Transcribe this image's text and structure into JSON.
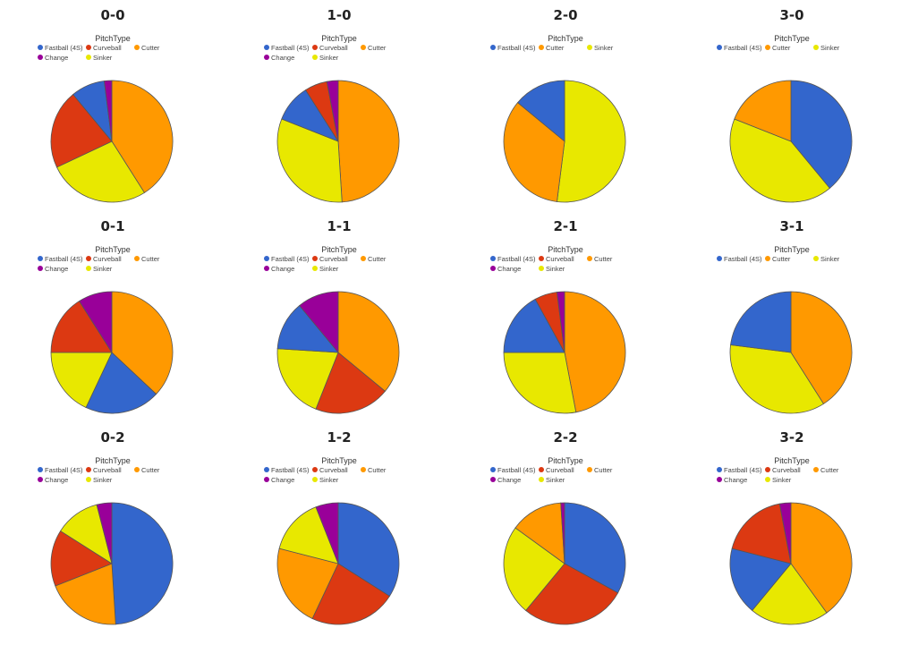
{
  "legend_title": "PitchType",
  "colors": {
    "Fastball (4S)": "#3366CC",
    "Curveball": "#DC3912",
    "Cutter": "#FF9900",
    "Change": "#990099",
    "Sinker": "#E8E800"
  },
  "chart_data": [
    {
      "type": "pie",
      "title": "0-0",
      "start": "Cutter",
      "slices": [
        {
          "label": "Cutter",
          "value": 41
        },
        {
          "label": "Sinker",
          "value": 27
        },
        {
          "label": "Curveball",
          "value": 21
        },
        {
          "label": "Fastball (4S)",
          "value": 9
        },
        {
          "label": "Change",
          "value": 2
        }
      ]
    },
    {
      "type": "pie",
      "title": "1-0",
      "start": "Cutter",
      "slices": [
        {
          "label": "Cutter",
          "value": 49
        },
        {
          "label": "Sinker",
          "value": 32
        },
        {
          "label": "Fastball (4S)",
          "value": 10
        },
        {
          "label": "Curveball",
          "value": 6
        },
        {
          "label": "Change",
          "value": 3
        }
      ]
    },
    {
      "type": "pie",
      "title": "2-0",
      "start": "Sinker",
      "slices": [
        {
          "label": "Sinker",
          "value": 52
        },
        {
          "label": "Cutter",
          "value": 34
        },
        {
          "label": "Fastball (4S)",
          "value": 14
        }
      ]
    },
    {
      "type": "pie",
      "title": "3-0",
      "start": "Fastball (4S)",
      "slices": [
        {
          "label": "Fastball (4S)",
          "value": 39
        },
        {
          "label": "Sinker",
          "value": 42
        },
        {
          "label": "Cutter",
          "value": 19
        }
      ]
    },
    {
      "type": "pie",
      "title": "0-1",
      "start": "Cutter",
      "slices": [
        {
          "label": "Cutter",
          "value": 37
        },
        {
          "label": "Fastball (4S)",
          "value": 20
        },
        {
          "label": "Sinker",
          "value": 18
        },
        {
          "label": "Curveball",
          "value": 16
        },
        {
          "label": "Change",
          "value": 9
        }
      ]
    },
    {
      "type": "pie",
      "title": "1-1",
      "start": "Cutter",
      "slices": [
        {
          "label": "Cutter",
          "value": 36
        },
        {
          "label": "Curveball",
          "value": 20
        },
        {
          "label": "Sinker",
          "value": 20
        },
        {
          "label": "Fastball (4S)",
          "value": 13
        },
        {
          "label": "Change",
          "value": 11
        }
      ]
    },
    {
      "type": "pie",
      "title": "2-1",
      "start": "Cutter",
      "slices": [
        {
          "label": "Cutter",
          "value": 47
        },
        {
          "label": "Sinker",
          "value": 28
        },
        {
          "label": "Fastball (4S)",
          "value": 17
        },
        {
          "label": "Curveball",
          "value": 6
        },
        {
          "label": "Change",
          "value": 2
        }
      ]
    },
    {
      "type": "pie",
      "title": "3-1",
      "start": "Cutter",
      "slices": [
        {
          "label": "Cutter",
          "value": 41
        },
        {
          "label": "Sinker",
          "value": 36
        },
        {
          "label": "Fastball (4S)",
          "value": 23
        }
      ]
    },
    {
      "type": "pie",
      "title": "0-2",
      "start": "Fastball (4S)",
      "slices": [
        {
          "label": "Fastball (4S)",
          "value": 49
        },
        {
          "label": "Cutter",
          "value": 20
        },
        {
          "label": "Curveball",
          "value": 15
        },
        {
          "label": "Sinker",
          "value": 12
        },
        {
          "label": "Change",
          "value": 4
        }
      ]
    },
    {
      "type": "pie",
      "title": "1-2",
      "start": "Fastball (4S)",
      "slices": [
        {
          "label": "Fastball (4S)",
          "value": 34
        },
        {
          "label": "Curveball",
          "value": 23
        },
        {
          "label": "Cutter",
          "value": 22
        },
        {
          "label": "Sinker",
          "value": 15
        },
        {
          "label": "Change",
          "value": 6
        }
      ]
    },
    {
      "type": "pie",
      "title": "2-2",
      "start": "Fastball (4S)",
      "slices": [
        {
          "label": "Fastball (4S)",
          "value": 33
        },
        {
          "label": "Curveball",
          "value": 28
        },
        {
          "label": "Sinker",
          "value": 24
        },
        {
          "label": "Cutter",
          "value": 14
        },
        {
          "label": "Change",
          "value": 1
        }
      ]
    },
    {
      "type": "pie",
      "title": "3-2",
      "start": "Cutter",
      "slices": [
        {
          "label": "Cutter",
          "value": 40
        },
        {
          "label": "Sinker",
          "value": 21
        },
        {
          "label": "Fastball (4S)",
          "value": 18
        },
        {
          "label": "Curveball",
          "value": 18
        },
        {
          "label": "Change",
          "value": 3
        }
      ]
    }
  ],
  "legends": [
    [
      "Fastball (4S)",
      "Curveball",
      "Cutter",
      "Change",
      "Sinker"
    ],
    [
      "Fastball (4S)",
      "Curveball",
      "Cutter",
      "Change",
      "Sinker"
    ],
    [
      "Fastball (4S)",
      "Cutter",
      "Sinker"
    ],
    [
      "Fastball (4S)",
      "Cutter",
      "Sinker"
    ],
    [
      "Fastball (4S)",
      "Curveball",
      "Cutter",
      "Change",
      "Sinker"
    ],
    [
      "Fastball (4S)",
      "Curveball",
      "Cutter",
      "Change",
      "Sinker"
    ],
    [
      "Fastball (4S)",
      "Curveball",
      "Cutter",
      "Change",
      "Sinker"
    ],
    [
      "Fastball (4S)",
      "Cutter",
      "Sinker"
    ],
    [
      "Fastball (4S)",
      "Curveball",
      "Cutter",
      "Change",
      "Sinker"
    ],
    [
      "Fastball (4S)",
      "Curveball",
      "Cutter",
      "Change",
      "Sinker"
    ],
    [
      "Fastball (4S)",
      "Curveball",
      "Cutter",
      "Change",
      "Sinker"
    ],
    [
      "Fastball (4S)",
      "Curveball",
      "Cutter",
      "Change",
      "Sinker"
    ]
  ]
}
